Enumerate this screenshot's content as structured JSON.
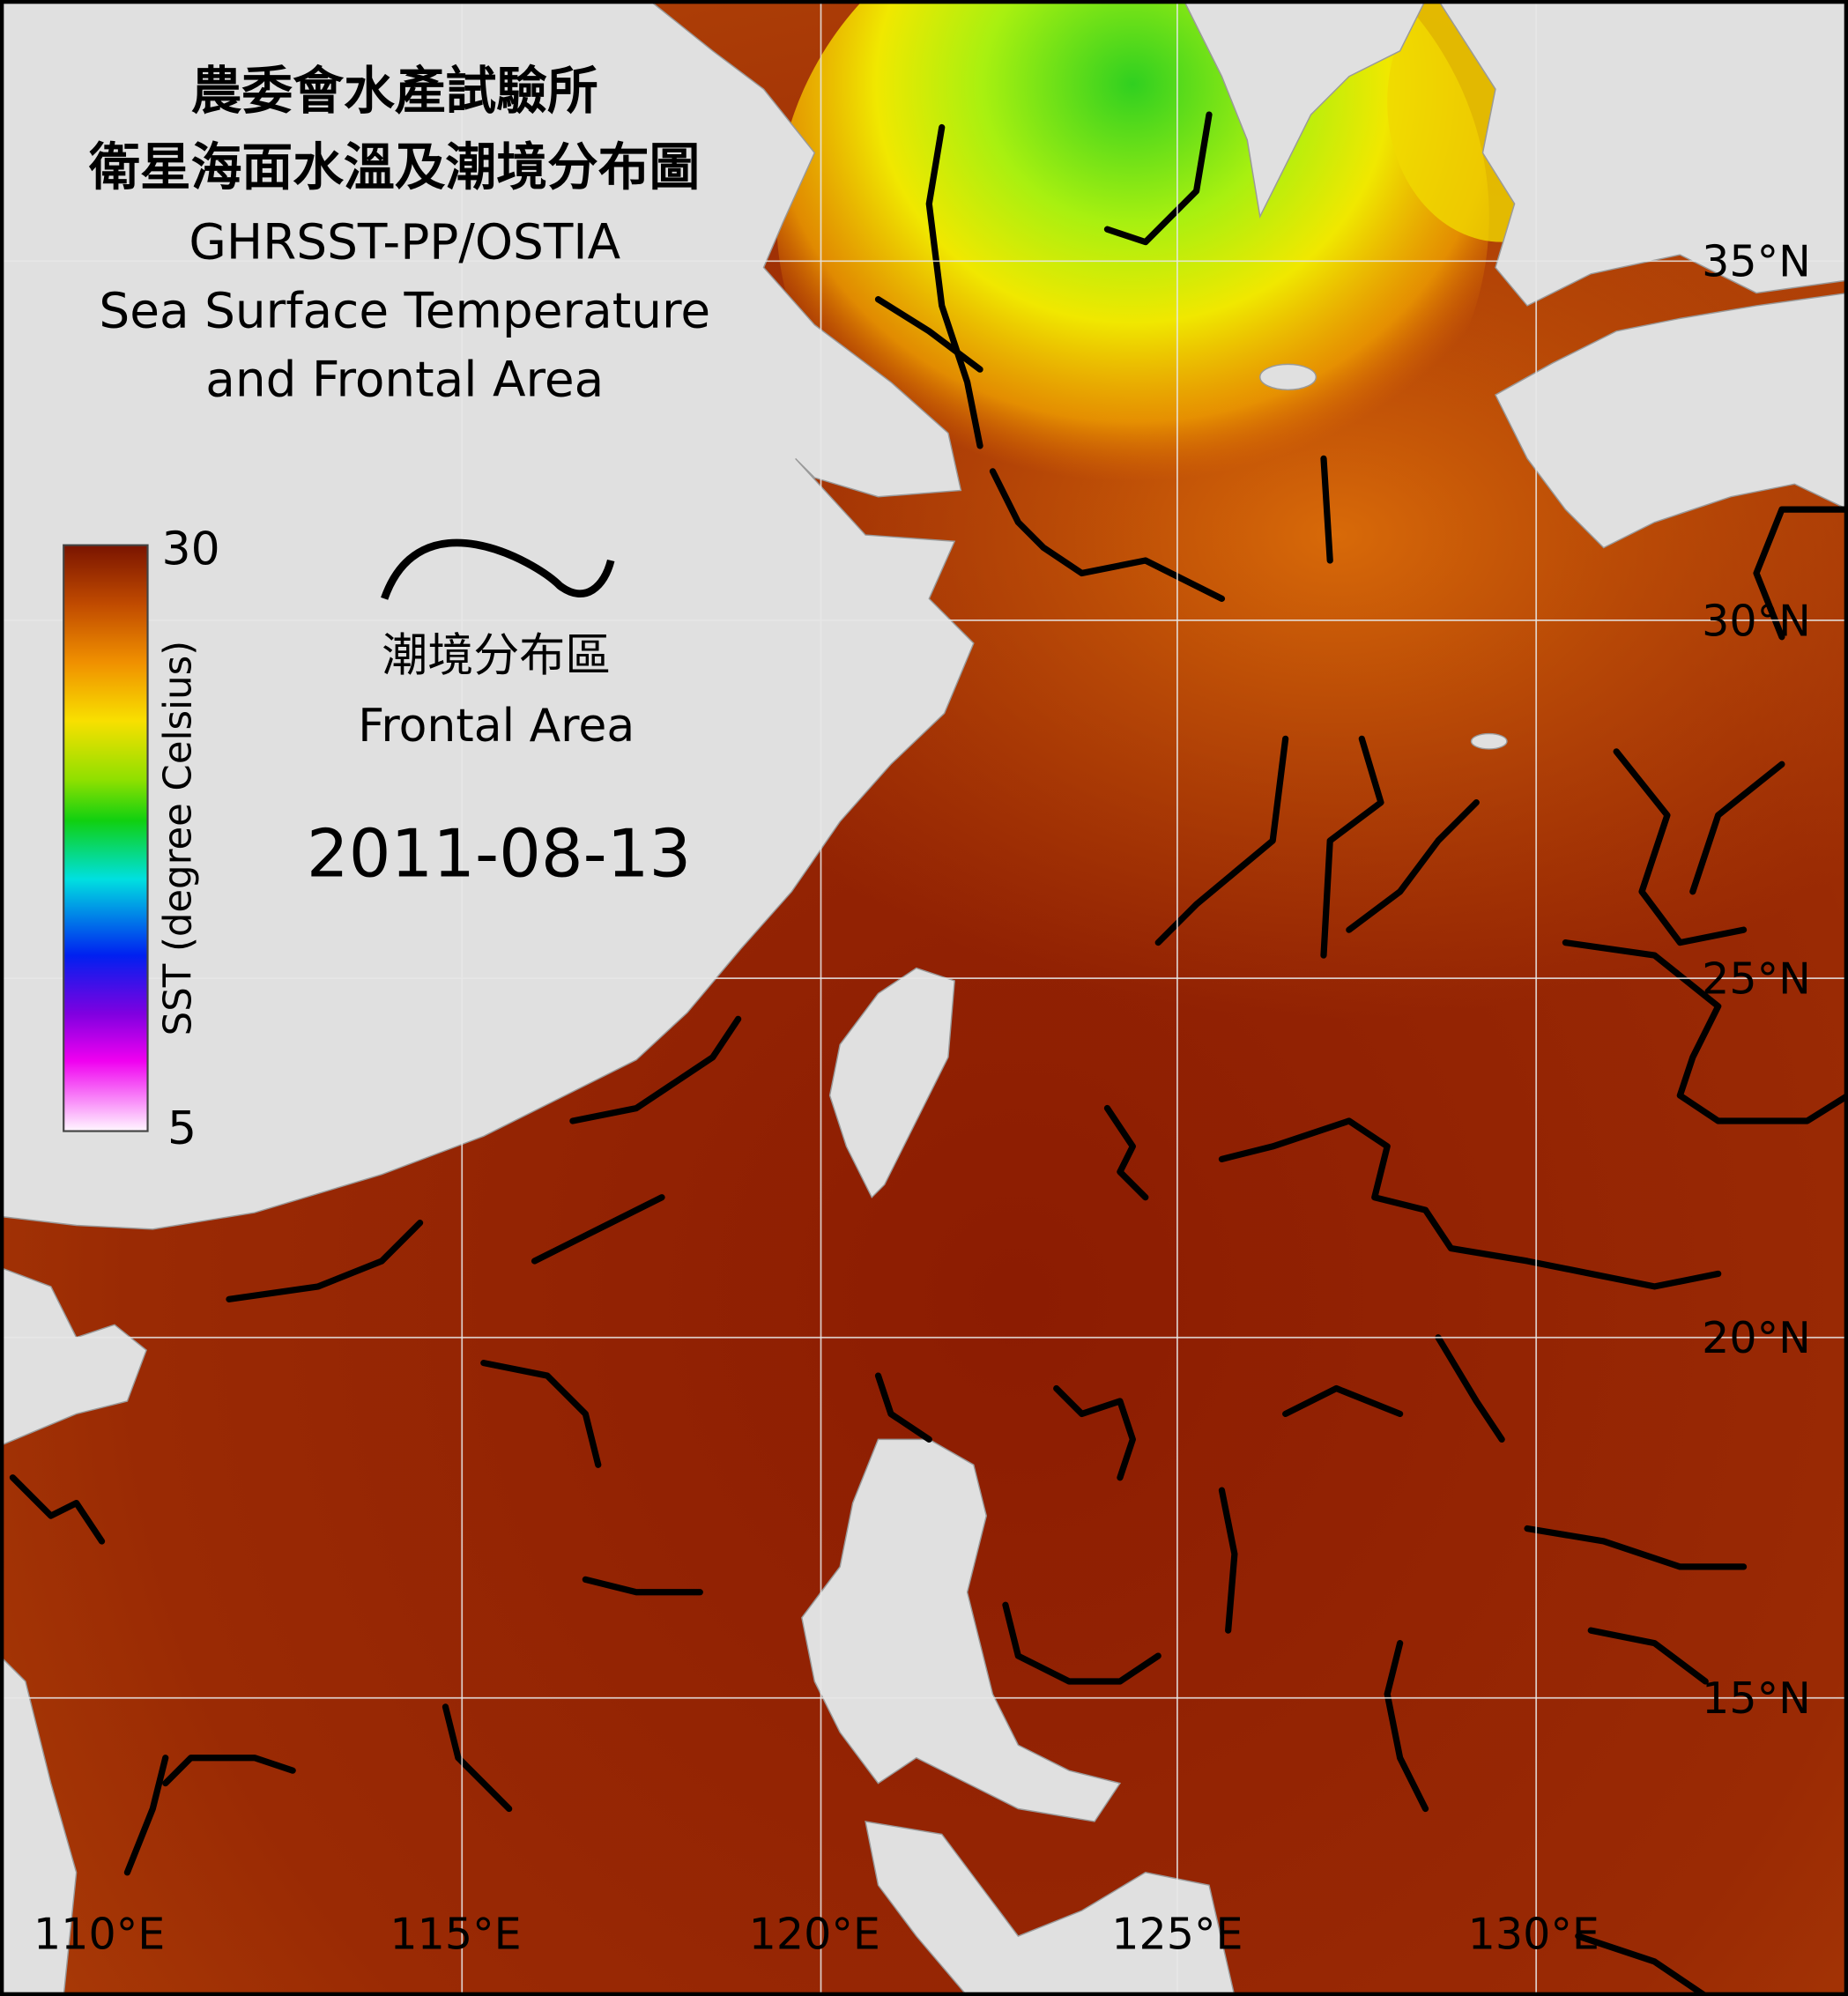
{
  "header": {
    "title_zh": [
      "農委會水產試驗所",
      "衛星海面水溫及潮境分布圖"
    ],
    "title_en": [
      "GHRSST-PP/OSTIA",
      "Sea Surface Temperature",
      "and Frontal Area"
    ]
  },
  "colorbar": {
    "max": 30,
    "min": 5,
    "label": "SST (degree Celsius)"
  },
  "legend": {
    "label_zh": "潮境分布區",
    "label_en": "Frontal Area"
  },
  "date": "2011-08-13",
  "lat_labels": [
    "35°N",
    "30°N",
    "25°N",
    "20°N",
    "15°N"
  ],
  "lon_labels": [
    "110°E",
    "115°E",
    "120°E",
    "125°E",
    "130°E"
  ]
}
